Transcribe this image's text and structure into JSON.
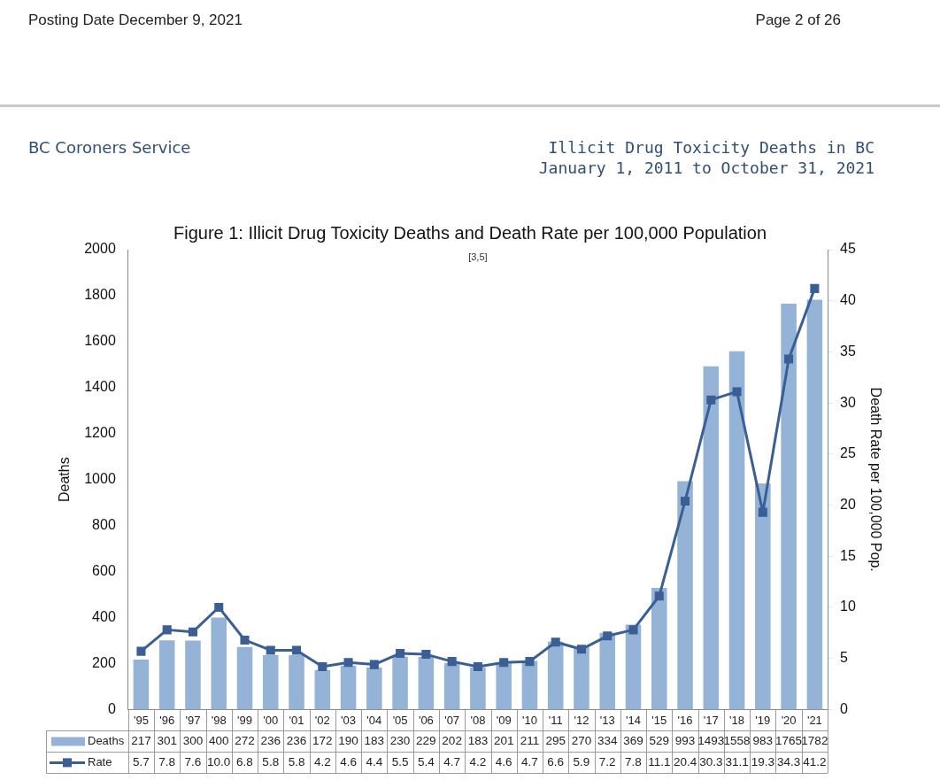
{
  "chart_data": {
    "type": "bar",
    "title": "Figure 1: Illicit Drug Toxicity Deaths and Death Rate per 100,000 Population",
    "subtitle": "[3,5]",
    "ylabel": "Deaths",
    "y2label": "Death Rate per 100,000 Pop.",
    "annotations": [
      "Posting Date December 9, 2021",
      "Page 2 of 26",
      "BC Coroners Service",
      "Illicit Drug Toxicity Deaths in BC\nJanuary 1, 2011 to October 31, 2021"
    ],
    "categories": [
      "'95",
      "'96",
      "'97",
      "'98",
      "'99",
      "'00",
      "'01",
      "'02",
      "'03",
      "'04",
      "'05",
      "'06",
      "'07",
      "'08",
      "'09",
      "'10",
      "'11",
      "'12",
      "'13",
      "'14",
      "'15",
      "'16",
      "'17",
      "'18",
      "'19",
      "'20",
      "'21"
    ],
    "series": [
      {
        "name": "Deaths",
        "color": "#95b3d7",
        "values": [
          217,
          301,
          300,
          400,
          272,
          236,
          236,
          172,
          190,
          183,
          230,
          229,
          202,
          183,
          201,
          211,
          295,
          270,
          334,
          369,
          529,
          993,
          1493,
          1558,
          983,
          1765,
          1782
        ],
        "value_labels": [
          "217",
          "301",
          "300",
          "400",
          "272",
          "236",
          "236",
          "172",
          "190",
          "183",
          "230",
          "229",
          "202",
          "183",
          "201",
          "211",
          "295",
          "270",
          "334",
          "369",
          "529",
          "993",
          "1493",
          "1558",
          "983",
          "1765",
          "1782"
        ]
      },
      {
        "name": "Rate",
        "type": "line",
        "axis": "y2",
        "color": "#3a5f95",
        "marker": "square",
        "values": [
          5.7,
          7.8,
          7.6,
          10.0,
          6.8,
          5.8,
          5.8,
          4.2,
          4.6,
          4.4,
          5.5,
          5.4,
          4.7,
          4.2,
          4.6,
          4.7,
          6.6,
          5.9,
          7.2,
          7.8,
          11.1,
          20.4,
          30.3,
          31.1,
          19.3,
          34.3,
          41.2
        ],
        "value_labels": [
          "5.7",
          "7.8",
          "7.6",
          "10.0",
          "6.8",
          "5.8",
          "5.8",
          "4.2",
          "4.6",
          "4.4",
          "5.5",
          "5.4",
          "4.7",
          "4.2",
          "4.6",
          "4.7",
          "6.6",
          "5.9",
          "7.2",
          "7.8",
          "11.1",
          "20.4",
          "30.3",
          "31.1",
          "19.3",
          "34.3",
          "41.2"
        ]
      }
    ],
    "ylim": [
      0,
      2000
    ],
    "yticks": [
      0,
      200,
      400,
      600,
      800,
      1000,
      1200,
      1400,
      1600,
      1800,
      2000
    ],
    "y2lim": [
      0,
      45
    ],
    "y2ticks": [
      0,
      5,
      10,
      15,
      20,
      25,
      30,
      35,
      40,
      45
    ],
    "grid": false,
    "legend": "bottom"
  }
}
